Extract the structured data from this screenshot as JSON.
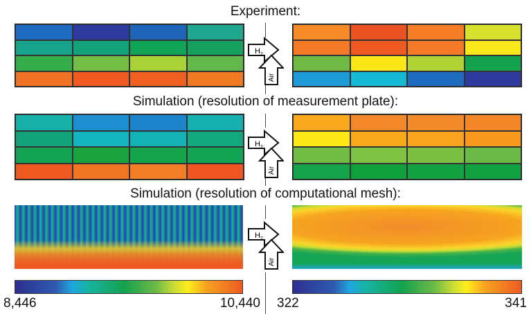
{
  "titles": {
    "experiment": "Experiment:",
    "sim_plate": "Simulation (resolution of measurement plate):",
    "sim_mesh": "Simulation (resolution of computational mesh):"
  },
  "arrows": {
    "h2_label": "H",
    "h2_sub": "2",
    "air_label": "Air"
  },
  "colorbars": {
    "left": {
      "min": "8,446",
      "max": "10,440"
    },
    "right": {
      "min": "322",
      "max": "341"
    }
  },
  "grids": {
    "exp_left": [
      "#1f6bbf",
      "#2f3a9e",
      "#1e64b8",
      "#1fa78f",
      "#17a48a",
      "#14a27a",
      "#12a456",
      "#17a05e",
      "#35ad4b",
      "#74be45",
      "#a9d238",
      "#62b84a",
      "#f07325",
      "#ee5a21",
      "#ef5f22",
      "#f07a24"
    ],
    "exp_right": [
      "#f58b28",
      "#ea5223",
      "#f57d27",
      "#d6e22d",
      "#f47a27",
      "#ee5a22",
      "#f57a27",
      "#fbe81c",
      "#70b944",
      "#fbe717",
      "#b0d235",
      "#14a24e",
      "#1f9bd8",
      "#18b9d5",
      "#1e6bbf",
      "#2f3a9c"
    ],
    "plate_left": [
      "#16b0a6",
      "#1d8fd1",
      "#1e84cc",
      "#17b0b0",
      "#12a277",
      "#15b5bf",
      "#14b1b5",
      "#13a77d",
      "#14a254",
      "#1ba33f",
      "#16a44d",
      "#13a456",
      "#ef5a23",
      "#f07524",
      "#f47d27",
      "#ef5622"
    ],
    "plate_right": [
      "#f8a91d",
      "#f3892a",
      "#f38a2a",
      "#f38729",
      "#fde917",
      "#f9a91c",
      "#f9a31e",
      "#f99a20",
      "#72bb44",
      "#7ec143",
      "#7bc043",
      "#6ab845",
      "#17a34b",
      "#12a03c",
      "#13a141",
      "#11a042"
    ]
  }
}
